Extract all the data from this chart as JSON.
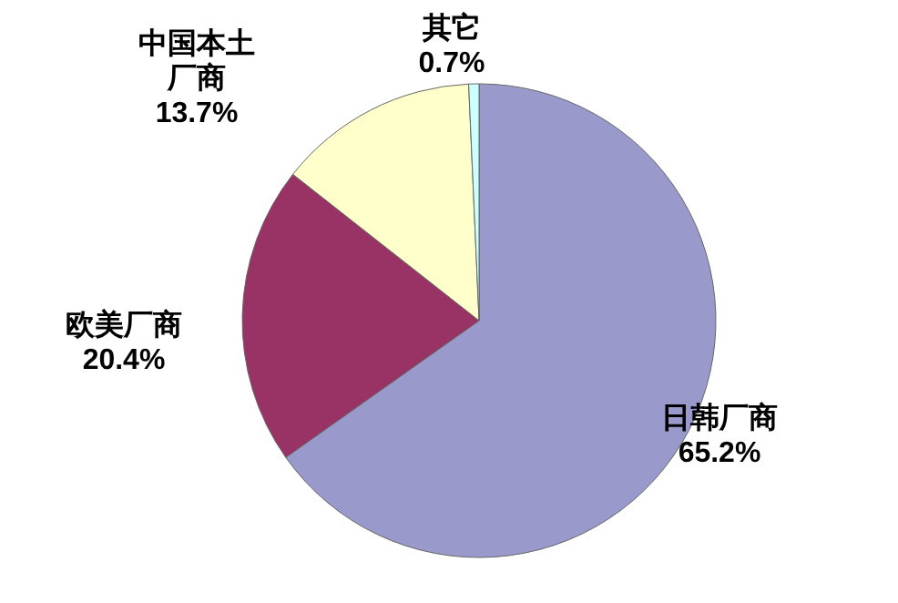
{
  "chart_data": {
    "type": "pie",
    "categories": [
      "日韩厂商",
      "欧美厂商",
      "中国本土厂商",
      "其它"
    ],
    "values": [
      65.2,
      20.4,
      13.7,
      0.7
    ],
    "value_labels": [
      "65.2%",
      "20.4%",
      "13.7%",
      "0.7%"
    ],
    "colors": [
      "#9999cc",
      "#993366",
      "#ffffcc",
      "#ccffff"
    ]
  }
}
